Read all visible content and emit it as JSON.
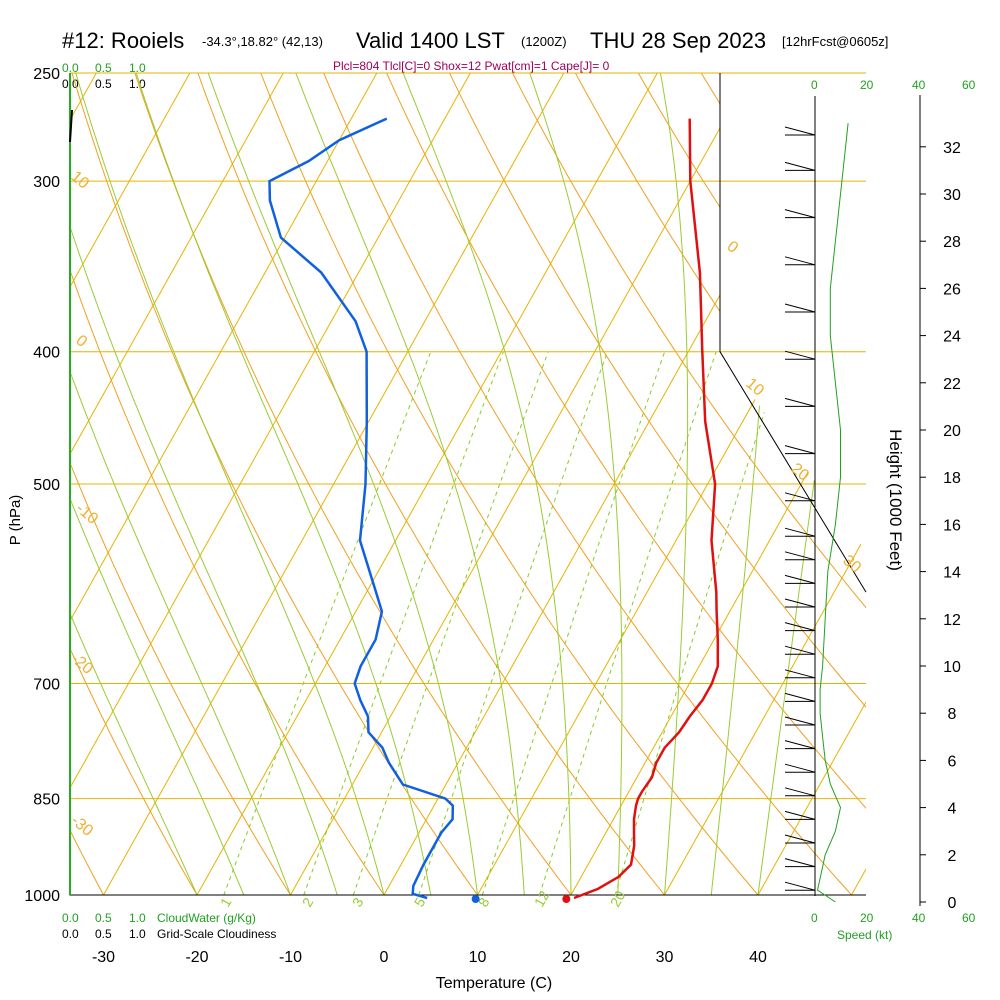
{
  "header": {
    "station": "#12: Rooiels",
    "location": "-34.3°,18.82° (42,13)",
    "valid": "Valid 1400 LST",
    "utc": "(1200Z)",
    "date": "THU 28 Sep 2023",
    "forecast": "[12hrFcst@0605z]",
    "stats": "Plcl=804 Tlcl[C]=0 Shox=12 Pwat[cm]=1 Cape[J]= 0"
  },
  "cloud_scale": {
    "top_green": [
      "0.0",
      "0.5",
      "1.0"
    ],
    "top_black": [
      "0.0",
      "0.5",
      "1.0"
    ],
    "bottom_green": [
      "0.0",
      "0.5",
      "1.0"
    ],
    "bottom_black": [
      "0.0",
      "0.5",
      "1.0"
    ],
    "cloudwater_label": "CloudWater (g/Kg)",
    "cloudiness_label": "Grid-Scale Cloudiness"
  },
  "wind_scale": {
    "top": [
      "0",
      "20",
      "40",
      "60"
    ],
    "bottom": [
      "0",
      "20",
      "40",
      "60"
    ],
    "label": "Speed (kt)"
  },
  "chart_data": {
    "type": "line",
    "title": "Skew-T sounding",
    "xlabel": "Temperature (C)",
    "ylabel": "P (hPa)",
    "y2label": "Height (1000 Feet)",
    "x_ticks": [
      -30,
      -20,
      -10,
      0,
      10,
      20,
      30,
      40
    ],
    "p_ticks": [
      250,
      300,
      400,
      500,
      700,
      850,
      1000
    ],
    "height_ticks": [
      0,
      2,
      4,
      6,
      8,
      10,
      12,
      14,
      16,
      18,
      20,
      22,
      24,
      26,
      28,
      30,
      32
    ],
    "isotherm_labels": [
      "10",
      "0",
      "-10",
      "-20",
      "-30",
      "0",
      "10",
      "20",
      "30"
    ],
    "mixing_ratio_labels": [
      "1",
      "2",
      "3",
      "5",
      "8",
      "12",
      "20"
    ],
    "series": [
      {
        "name": "Temperature",
        "color": "#e01010",
        "p": [
          1005,
          990,
          970,
          950,
          920,
          900,
          880,
          860,
          850,
          840,
          820,
          800,
          780,
          760,
          740,
          720,
          700,
          680,
          650,
          620,
          600,
          550,
          500,
          450,
          400,
          350,
          300,
          270
        ],
        "t": [
          20.5,
          22.5,
          24.0,
          24.6,
          23.8,
          23.0,
          22.2,
          21.6,
          21.4,
          21.4,
          21.6,
          21.2,
          21.2,
          21.8,
          22.0,
          22.4,
          22.4,
          22.0,
          20.4,
          18.6,
          17.4,
          13.8,
          10.8,
          6.0,
          1.5,
          -3.5,
          -10.0,
          -13.8
        ]
      },
      {
        "name": "Dewpoint",
        "color": "#1060e0",
        "p": [
          1005,
          998,
          985,
          950,
          900,
          880,
          860,
          850,
          830,
          800,
          780,
          760,
          740,
          720,
          700,
          680,
          650,
          620,
          600,
          550,
          500,
          450,
          400,
          380,
          350,
          330,
          310,
          300,
          290,
          280,
          270
        ],
        "t": [
          4.8,
          3.0,
          2.6,
          2.4,
          2.4,
          2.8,
          2.0,
          0.8,
          -4.6,
          -7.4,
          -9.0,
          -11.4,
          -12.4,
          -14.2,
          -15.8,
          -16.2,
          -16.2,
          -17.2,
          -19.0,
          -23.8,
          -26.6,
          -30.2,
          -34.4,
          -37.4,
          -44.0,
          -50.4,
          -53.8,
          -55.0,
          -52.0,
          -50.0,
          -46.2
        ]
      }
    ],
    "surface_markers": [
      {
        "name": "Surface dewpoint",
        "t": 9.8,
        "color": "#1060e0"
      },
      {
        "name": "Surface temperature",
        "t": 19.5,
        "color": "#e01010"
      }
    ],
    "wind_speed_kt": {
      "height_kft": [
        0,
        0.5,
        1,
        2,
        3,
        4,
        5,
        6,
        7,
        8,
        9,
        10,
        12,
        14,
        16,
        18,
        20,
        22,
        24,
        26,
        28,
        30,
        32,
        33
      ],
      "speed": [
        8,
        1,
        2,
        4,
        8,
        10,
        6,
        4,
        3,
        2,
        2,
        3,
        4,
        5,
        8,
        10,
        10,
        8,
        6,
        6,
        8,
        10,
        12,
        13
      ]
    },
    "wind_barbs_height_kft": [
      0.5,
      1.5,
      2.5,
      3.5,
      4.5,
      5.5,
      6.5,
      7.5,
      8.5,
      9.5,
      10.5,
      11.5,
      12.5,
      13.5,
      14.5,
      15.5,
      17,
      19,
      21,
      23,
      25,
      27,
      29,
      31,
      32.5
    ]
  }
}
